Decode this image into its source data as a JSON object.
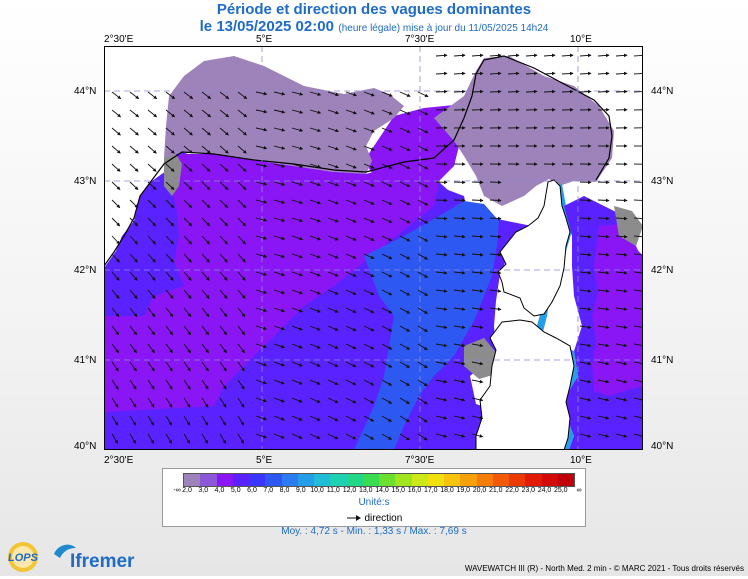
{
  "header": {
    "title": "Période et direction des vagues dominantes",
    "date": "le 13/05/2025 02:00",
    "detail": "(heure légale) mise à jour du 11/05/2025 14h24"
  },
  "axes": {
    "top": [
      "2°30'E",
      "5°E",
      "7°30'E",
      "10°E"
    ],
    "bottom": [
      "2°30'E",
      "5°E",
      "7°30'E",
      "10°E"
    ],
    "left": [
      "44°N",
      "43°N",
      "42°N",
      "41°N",
      "40°N"
    ],
    "right": [
      "44°N",
      "43°N",
      "42°N",
      "41°N",
      "40°N"
    ],
    "lon_range": [
      2.5,
      11.0
    ],
    "lat_range": [
      40.0,
      44.4
    ]
  },
  "legend": {
    "values": [
      "2,0",
      "3,0",
      "4,0",
      "5,0",
      "6,0",
      "7,0",
      "8,0",
      "9,0",
      "10,0",
      "11,0",
      "12,0",
      "13,0",
      "14,0",
      "15,0",
      "16,0",
      "17,0",
      "18,0",
      "19,0",
      "20,0",
      "21,0",
      "22,0",
      "23,0",
      "24,0",
      "25,0"
    ],
    "colors": [
      "#9e83ba",
      "#8c58d8",
      "#8a16f5",
      "#5a22ff",
      "#3a36ff",
      "#2e58f2",
      "#2a7cf0",
      "#249ee8",
      "#20bcd8",
      "#1ed0b4",
      "#22d888",
      "#38dc50",
      "#6ce030",
      "#a0e620",
      "#cde818",
      "#f0e010",
      "#f6c40c",
      "#f8a00a",
      "#f67e08",
      "#f25a06",
      "#ec3a04",
      "#e21c04",
      "#d40a06",
      "#c00008"
    ],
    "neg_inf": "-∞",
    "pos_inf": "∞",
    "unit": "Unité:s",
    "arrow_label": "direction"
  },
  "stats": "Moy. : 4,72 s  -  Min. : 1,33 s / Max. : 7,69 s",
  "footer": "WAVEWATCH III (R) - North Med. 2 min - © MARC 2021 - Tous droits réservés",
  "logos": {
    "lops": "LOPS",
    "ifremer": "Ifremer"
  },
  "map": {
    "period_zones": [
      "#9e83ba",
      "#8a16f5",
      "#5a22ff",
      "#2e58f2",
      "#249ee8",
      "#8c8c8c"
    ],
    "arrow_direction": "east to south-east"
  }
}
